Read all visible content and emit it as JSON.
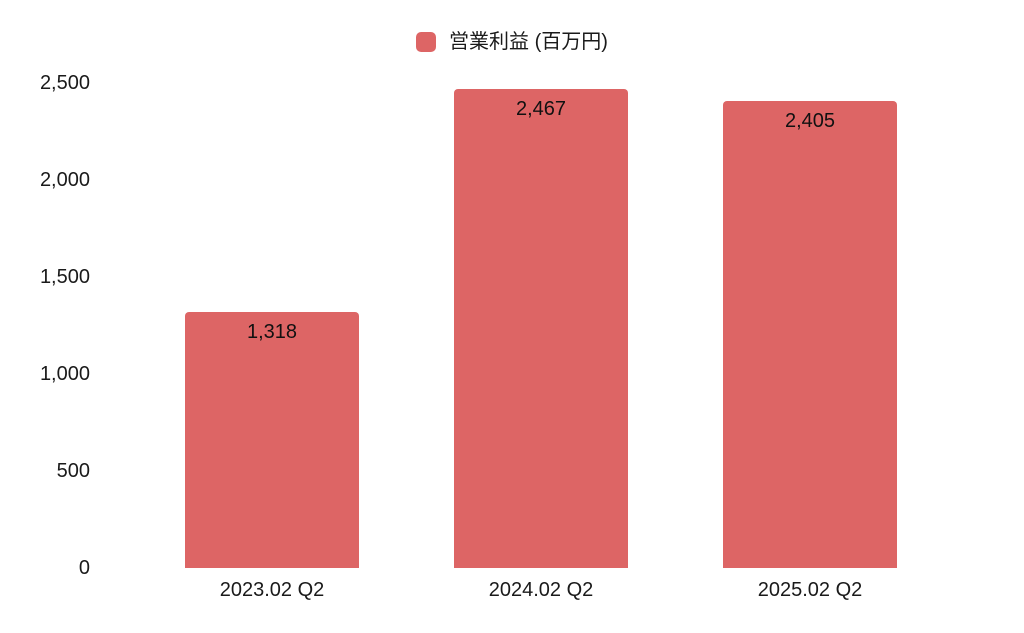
{
  "chart_data": {
    "type": "bar",
    "title": "",
    "legend_label": "営業利益 (百万円)",
    "legend_position": "top",
    "categories": [
      "2023.02 Q2",
      "2024.02 Q2",
      "2025.02 Q2"
    ],
    "values": [
      1318,
      2467,
      2405
    ],
    "value_labels": [
      "1,318",
      "2,467",
      "2,405"
    ],
    "ylim": [
      0,
      2500
    ],
    "yticks": [
      0,
      500,
      1000,
      1500,
      2000,
      2500
    ],
    "ytick_labels": [
      "0",
      "500",
      "1,000",
      "1,500",
      "2,000",
      "2,500"
    ],
    "bar_color": "#dd6565",
    "text_color": "#1a1a1a",
    "grid": false,
    "axis_lines": false
  }
}
